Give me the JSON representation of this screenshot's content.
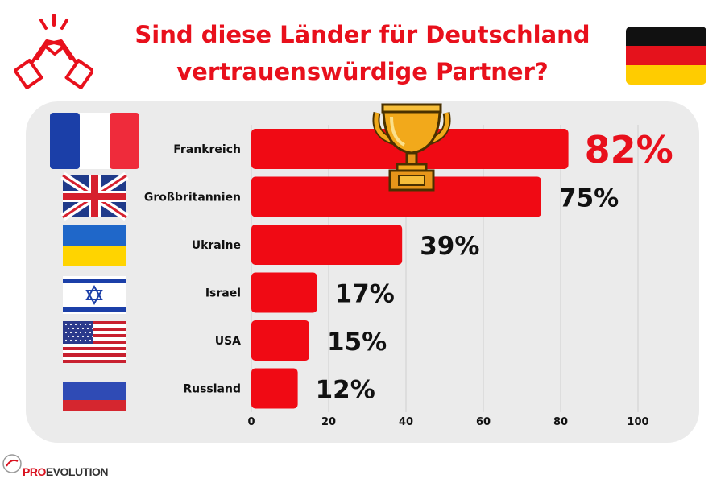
{
  "title": {
    "line1": "Sind diese Länder für Deutschland",
    "line2": "vertrauenswürdige Partner?"
  },
  "logo": {
    "brand_red": "PRO",
    "brand_dark": "EVOLUTION"
  },
  "colors": {
    "accent": "#e8101c",
    "bar": "#f00a14",
    "panel": "#ebebeb",
    "text": "#111111"
  },
  "icons": [
    "handshake-icon",
    "germany-flag",
    "trophy-icon",
    "france-flag",
    "uk-flag",
    "ukraine-flag",
    "israel-flag",
    "usa-flag",
    "russia-flag"
  ],
  "chart_data": {
    "type": "bar",
    "orientation": "horizontal",
    "title": "",
    "categories": [
      "Frankreich",
      "Großbritannien",
      "Ukraine",
      "Israel",
      "USA",
      "Russland"
    ],
    "values": [
      82,
      75,
      39,
      17,
      15,
      12
    ],
    "value_labels": [
      "82%",
      "75%",
      "39%",
      "17%",
      "15%",
      "12%"
    ],
    "xlim": [
      0,
      100
    ],
    "xticks": [
      0,
      20,
      40,
      60,
      80,
      100
    ],
    "grid": true,
    "legend": "none"
  }
}
